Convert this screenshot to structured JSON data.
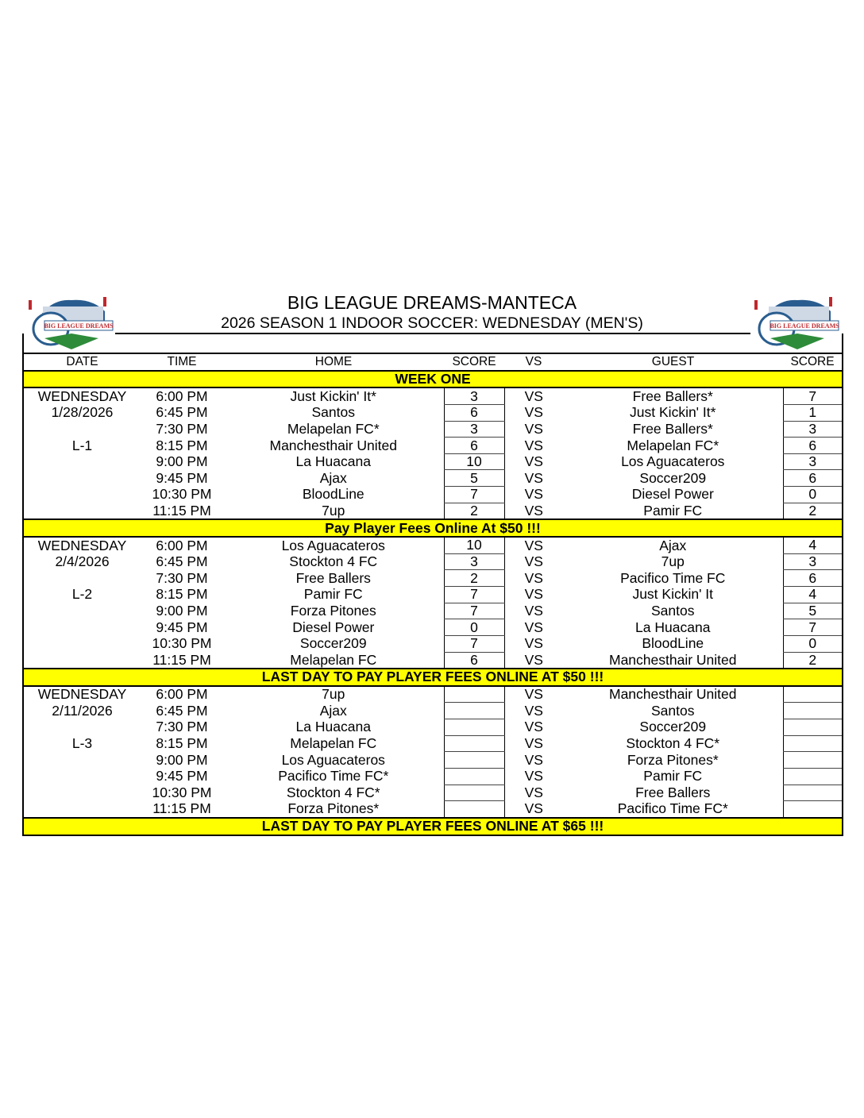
{
  "header": {
    "title": "BIG LEAGUE DREAMS-MANTECA",
    "subtitle": "2026 SEASON 1 INDOOR SOCCER: WEDNESDAY (MEN'S)",
    "logo_text": "BIG LEAGUE DREAMS"
  },
  "columns": {
    "date": "DATE",
    "time": "TIME",
    "home": "HOME",
    "home_score": "SCORE",
    "vs": "VS",
    "guest": "GUEST",
    "guest_score": "SCORE"
  },
  "colors": {
    "banner": "#ffff00"
  },
  "weeks": [
    {
      "banner": "WEEK ONE",
      "day": "WEDNESDAY",
      "date": "1/28/2026",
      "league": "L-1",
      "games": [
        {
          "time": "6:00 PM",
          "home": "Just Kickin' It*",
          "hs": "3",
          "guest": "Free Ballers*",
          "gs": "7"
        },
        {
          "time": "6:45 PM",
          "home": "Santos",
          "hs": "6",
          "guest": "Just Kickin' It*",
          "gs": "1"
        },
        {
          "time": "7:30 PM",
          "home": "Melapelan FC*",
          "hs": "3",
          "guest": "Free Ballers*",
          "gs": "3"
        },
        {
          "time": "8:15 PM",
          "home": "Manchesthair United",
          "hs": "6",
          "guest": "Melapelan FC*",
          "gs": "6"
        },
        {
          "time": "9:00 PM",
          "home": "La Huacana",
          "hs": "10",
          "guest": "Los Aguacateros",
          "gs": "3"
        },
        {
          "time": "9:45 PM",
          "home": "Ajax",
          "hs": "5",
          "guest": "Soccer209",
          "gs": "6"
        },
        {
          "time": "10:30 PM",
          "home": "BloodLine",
          "hs": "7",
          "guest": "Diesel Power",
          "gs": "0"
        },
        {
          "time": "11:15 PM",
          "home": "7up",
          "hs": "2",
          "guest": "Pamir FC",
          "gs": "2"
        }
      ]
    },
    {
      "banner": "Pay Player Fees Online At $50 !!!",
      "day": "WEDNESDAY",
      "date": "2/4/2026",
      "league": "L-2",
      "games": [
        {
          "time": "6:00 PM",
          "home": "Los Aguacateros",
          "hs": "10",
          "guest": "Ajax",
          "gs": "4"
        },
        {
          "time": "6:45 PM",
          "home": "Stockton 4 FC",
          "hs": "3",
          "guest": "7up",
          "gs": "3"
        },
        {
          "time": "7:30 PM",
          "home": "Free Ballers",
          "hs": "2",
          "guest": "Pacifico Time FC",
          "gs": "6"
        },
        {
          "time": "8:15 PM",
          "home": "Pamir FC",
          "hs": "7",
          "guest": "Just Kickin' It",
          "gs": "4"
        },
        {
          "time": "9:00 PM",
          "home": "Forza Pitones",
          "hs": "7",
          "guest": "Santos",
          "gs": "5"
        },
        {
          "time": "9:45 PM",
          "home": "Diesel Power",
          "hs": "0",
          "guest": "La Huacana",
          "gs": "7"
        },
        {
          "time": "10:30 PM",
          "home": "Soccer209",
          "hs": "7",
          "guest": "BloodLine",
          "gs": "0"
        },
        {
          "time": "11:15 PM",
          "home": "Melapelan FC",
          "hs": "6",
          "guest": "Manchesthair United",
          "gs": "2"
        }
      ]
    },
    {
      "banner": "LAST DAY TO PAY PLAYER FEES ONLINE AT $50 !!!",
      "day": "WEDNESDAY",
      "date": "2/11/2026",
      "league": "L-3",
      "games": [
        {
          "time": "6:00 PM",
          "home": "7up",
          "hs": "",
          "guest": "Manchesthair United",
          "gs": ""
        },
        {
          "time": "6:45 PM",
          "home": "Ajax",
          "hs": "",
          "guest": "Santos",
          "gs": ""
        },
        {
          "time": "7:30 PM",
          "home": "La Huacana",
          "hs": "",
          "guest": "Soccer209",
          "gs": ""
        },
        {
          "time": "8:15 PM",
          "home": "Melapelan FC",
          "hs": "",
          "guest": "Stockton 4 FC*",
          "gs": ""
        },
        {
          "time": "9:00 PM",
          "home": "Los Aguacateros",
          "hs": "",
          "guest": "Forza Pitones*",
          "gs": ""
        },
        {
          "time": "9:45 PM",
          "home": "Pacifico Time FC*",
          "hs": "",
          "guest": "Pamir FC",
          "gs": ""
        },
        {
          "time": "10:30 PM",
          "home": "Stockton 4 FC*",
          "hs": "",
          "guest": "Free Ballers",
          "gs": ""
        },
        {
          "time": "11:15 PM",
          "home": "Forza Pitones*",
          "hs": "",
          "guest": "Pacifico Time FC*",
          "gs": ""
        }
      ]
    }
  ],
  "vs_label": "VS",
  "footer_banner": "LAST DAY TO PAY PLAYER FEES ONLINE AT $65 !!!"
}
